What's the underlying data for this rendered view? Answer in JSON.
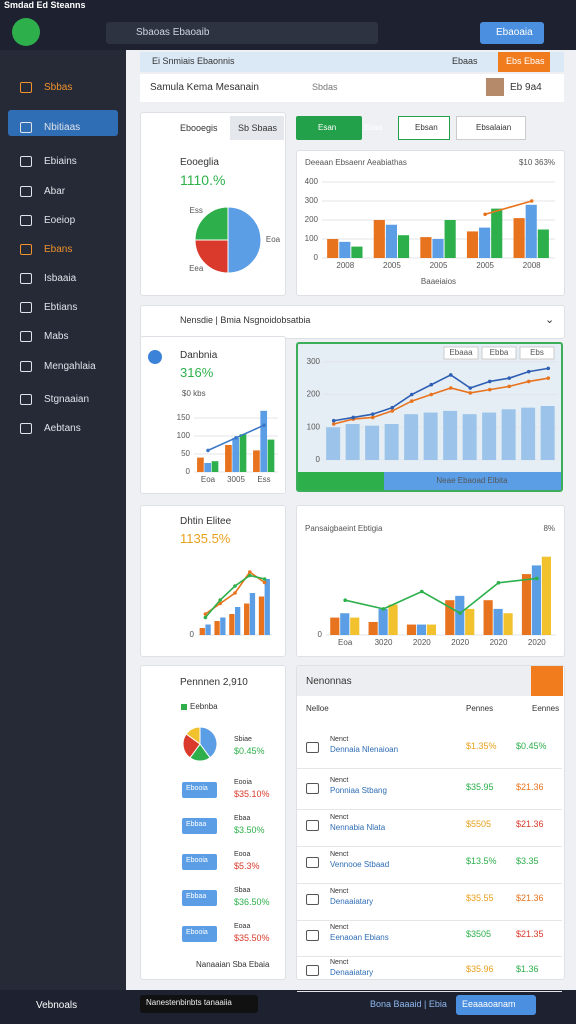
{
  "topbar": {
    "app": "Smdad Ed Steanns",
    "search": "Sbaoas Ebaoaib",
    "button": "Ebaoaia"
  },
  "sidebar": [
    "Sbbas",
    "Nbitiaas",
    "Ebiains",
    "Abar",
    "Eoeiop",
    "Ebans",
    "Isbaaia",
    "Ebtians",
    "Mabs",
    "Mengahlaia",
    "Stgnaaian",
    "Aebtans"
  ],
  "breadcrumb": {
    "title": "Ei Snmiais Ebaonnis",
    "right": "Ebaas",
    "button": "Ebs Ebas"
  },
  "header": {
    "title": "Samula Kema Mesanain",
    "sub": "Sbdas",
    "user": "Eb 9a4"
  },
  "toolbar": [
    "Sb Sbaas",
    "Esan",
    "Enas",
    "Ebsan",
    "Ebsalaian"
  ],
  "cards": [
    {
      "title": "Ebooegis",
      "name": "Eooeglia",
      "value": "1110.%"
    },
    {
      "name": "Danbnia",
      "value": "316%"
    },
    {
      "name": "Dhtin Elitee",
      "value": "1135.5%"
    }
  ],
  "section": {
    "title": "Nensdie | Bmia Nsgnoidobsatbia"
  },
  "list": {
    "title": "Pennnen 2,910",
    "legend": "Eebnba",
    "rows": [
      {
        "label": "Sbiae",
        "value": "$0.45%"
      },
      {
        "button": "Ebooia",
        "label": "Eooia",
        "value": "$35.10%"
      },
      {
        "button": "Ebbaa",
        "label": "Ebaa",
        "value": "$3.50%"
      },
      {
        "button": "Ebooia",
        "label": "Eooa",
        "value": "$5.3%"
      },
      {
        "button": "Ebbaa",
        "label": "Sbaa",
        "value": "$36.50%"
      },
      {
        "button": "Ebooia",
        "label": "Eoaa",
        "value": "$35.50%"
      }
    ],
    "footer": "Nanaaian Sba Ebaia"
  },
  "table": {
    "title": "Nenonnas",
    "columns": [
      "Nelloe",
      "Pennes",
      "Eennes"
    ],
    "rows": [
      [
        "Nenct",
        "Dennaia Nlenaioan",
        "$1.35%",
        "$0.45%"
      ],
      [
        "Nenct",
        "Ponniaa Stbang",
        "$35.95",
        "$21.36"
      ],
      [
        "Nenct",
        "Nennabia Nlata",
        "$5505",
        "$21.36"
      ],
      [
        "Nenct",
        "Vennooe Stbaad",
        "$13.5%",
        "$3.35"
      ],
      [
        "Nenct",
        "Denaaiatary",
        "$35.55",
        "$21.36"
      ],
      [
        "Nenct",
        "Eenaoan Ebians",
        "$3505",
        "$21.35"
      ],
      [
        "Nenct",
        "Denaaiatary",
        "$35.96",
        "$1.36"
      ]
    ]
  },
  "bottombar": {
    "left": "Vebnoals",
    "tooltip": "Nanestenbinbts tanaaiia",
    "right": "Bona Baaaid | Ebia",
    "button": "Eeaaaoanam"
  },
  "chart_data": [
    {
      "type": "pie",
      "values": [
        50,
        25,
        25
      ],
      "colors": [
        "#5b9ee6",
        "#d93a2b",
        "#2db04b"
      ],
      "categories": [
        "Eoa",
        "Eea",
        "Ess"
      ]
    },
    {
      "type": "combo",
      "title": "Deeaan Ebsaenr Aeabiathas",
      "annotation": "$10 363%",
      "x_label": "Baaeiaios",
      "categories": [
        "2008",
        "2005",
        "2005",
        "2005",
        "2008"
      ],
      "ylim": [
        0,
        400
      ],
      "yticks": [
        0,
        100,
        200,
        300,
        400
      ],
      "series": [
        {
          "kind": "bar",
          "color": "#e8731e",
          "values": [
            100,
            200,
            110,
            140,
            210
          ]
        },
        {
          "kind": "bar",
          "color": "#5b9ee6",
          "values": [
            85,
            175,
            100,
            160,
            280
          ]
        },
        {
          "kind": "bar",
          "color": "#2db04b",
          "values": [
            60,
            120,
            200,
            260,
            150
          ]
        },
        {
          "kind": "line",
          "color": "#e8731e",
          "values": [
            null,
            null,
            null,
            230,
            300
          ]
        }
      ]
    },
    {
      "type": "combo",
      "annotation": "$0 kbs",
      "categories": [
        "Eoa",
        "3005",
        "Ess"
      ],
      "ylim": [
        0,
        200
      ],
      "yticks": [
        0,
        50,
        100,
        150
      ],
      "series": [
        {
          "kind": "bar",
          "color": "#e8731e",
          "values": [
            40,
            75,
            60
          ]
        },
        {
          "kind": "bar",
          "color": "#5b9ee6",
          "values": [
            25,
            95,
            170
          ]
        },
        {
          "kind": "bar",
          "color": "#2db04b",
          "values": [
            30,
            105,
            90
          ]
        },
        {
          "kind": "line",
          "color": "#3c78c8",
          "values": [
            60,
            95,
            130
          ]
        }
      ]
    },
    {
      "type": "combo",
      "buttons": [
        "Ebaaa",
        "Ebba",
        "Ebs"
      ],
      "footer": "Neae Ebaoad Elbita",
      "ylim": [
        0,
        330
      ],
      "yticks": [
        0,
        100,
        200,
        300
      ],
      "series": [
        {
          "kind": "bar",
          "color": "#9cc4ea",
          "values": [
            100,
            110,
            105,
            110,
            140,
            145,
            150,
            140,
            145,
            155,
            160,
            165
          ]
        },
        {
          "kind": "line",
          "color": "#e8731e",
          "values": [
            110,
            125,
            130,
            150,
            180,
            200,
            220,
            205,
            215,
            225,
            240,
            250
          ]
        },
        {
          "kind": "line",
          "color": "#2f5fb3",
          "values": [
            120,
            130,
            140,
            160,
            200,
            230,
            260,
            220,
            240,
            250,
            270,
            280
          ]
        }
      ]
    },
    {
      "type": "combo",
      "ylim": [
        0,
        100
      ],
      "yticks": [
        0
      ],
      "series": [
        {
          "kind": "bar",
          "color": "#e8731e",
          "values": [
            10,
            20,
            30,
            45,
            55
          ]
        },
        {
          "kind": "bar",
          "color": "#5b9ee6",
          "values": [
            15,
            25,
            40,
            60,
            80
          ]
        },
        {
          "kind": "line",
          "color": "#e8731e",
          "values": [
            30,
            45,
            60,
            90,
            75
          ]
        },
        {
          "kind": "line",
          "color": "#2db04b",
          "values": [
            25,
            50,
            70,
            85,
            80
          ]
        }
      ]
    },
    {
      "type": "combo",
      "title": "Pansaigbaeint Ebtigia",
      "annotation": "8%",
      "categories": [
        "Eoa",
        "3020",
        "2020",
        "2020",
        "2020",
        "2020"
      ],
      "ylim": [
        0,
        100
      ],
      "yticks": [
        0
      ],
      "series": [
        {
          "kind": "bar",
          "color": "#e8731e",
          "values": [
            20,
            15,
            12,
            40,
            40,
            70
          ]
        },
        {
          "kind": "bar",
          "color": "#5b9ee6",
          "values": [
            25,
            30,
            12,
            45,
            30,
            80
          ]
        },
        {
          "kind": "bar",
          "color": "#f2c12e",
          "values": [
            20,
            35,
            12,
            30,
            25,
            90
          ]
        },
        {
          "kind": "line",
          "color": "#2db04b",
          "values": [
            40,
            30,
            50,
            25,
            60,
            65
          ]
        }
      ]
    },
    {
      "type": "pie",
      "values": [
        40,
        20,
        25,
        15
      ],
      "colors": [
        "#5b9ee6",
        "#2db04b",
        "#d93a2b",
        "#f2c12e"
      ]
    }
  ]
}
